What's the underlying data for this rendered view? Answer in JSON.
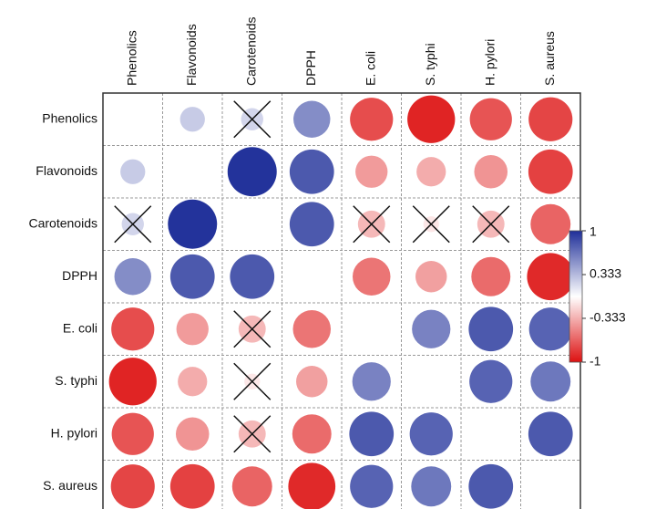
{
  "chart_data": {
    "type": "heatmap",
    "style": "correlogram-circles",
    "variables": [
      "Phenolics",
      "Flavonoids",
      "Carotenoids",
      "DPPH",
      "E. coli",
      "S. typhi",
      "H. pylori",
      "S. aureus"
    ],
    "matrix": [
      [
        null,
        0.25,
        0.2,
        0.55,
        -0.75,
        -0.92,
        -0.72,
        -0.78
      ],
      [
        0.25,
        null,
        0.98,
        0.8,
        -0.42,
        -0.35,
        -0.45,
        -0.8
      ],
      [
        0.2,
        0.98,
        null,
        0.8,
        -0.3,
        -0.1,
        -0.3,
        -0.65
      ],
      [
        0.55,
        0.8,
        0.8,
        null,
        -0.58,
        -0.4,
        -0.62,
        -0.9
      ],
      [
        -0.75,
        -0.42,
        -0.3,
        -0.58,
        null,
        0.6,
        0.8,
        0.75
      ],
      [
        -0.92,
        -0.35,
        -0.1,
        -0.4,
        0.6,
        null,
        0.75,
        0.65
      ],
      [
        -0.72,
        -0.45,
        -0.3,
        -0.62,
        0.8,
        0.75,
        null,
        0.8
      ],
      [
        -0.78,
        -0.8,
        -0.65,
        -0.9,
        0.75,
        0.65,
        0.8,
        null
      ]
    ],
    "not_significant": [
      [
        0,
        2
      ],
      [
        2,
        0
      ],
      [
        2,
        4
      ],
      [
        2,
        5
      ],
      [
        2,
        6
      ],
      [
        4,
        2
      ],
      [
        5,
        2
      ],
      [
        6,
        2
      ]
    ],
    "legend": {
      "min": -1,
      "max": 1,
      "tick_values": [
        1,
        0.333,
        -0.333,
        -1
      ],
      "tick_labels": [
        "1",
        "0.333",
        "-0.333",
        "-1"
      ],
      "placement": "right"
    },
    "colors": {
      "positive": "#1f2f99",
      "neutral": "#ffffff",
      "negative": "#dd1111",
      "grid": "#999999",
      "border": "#333333"
    }
  }
}
